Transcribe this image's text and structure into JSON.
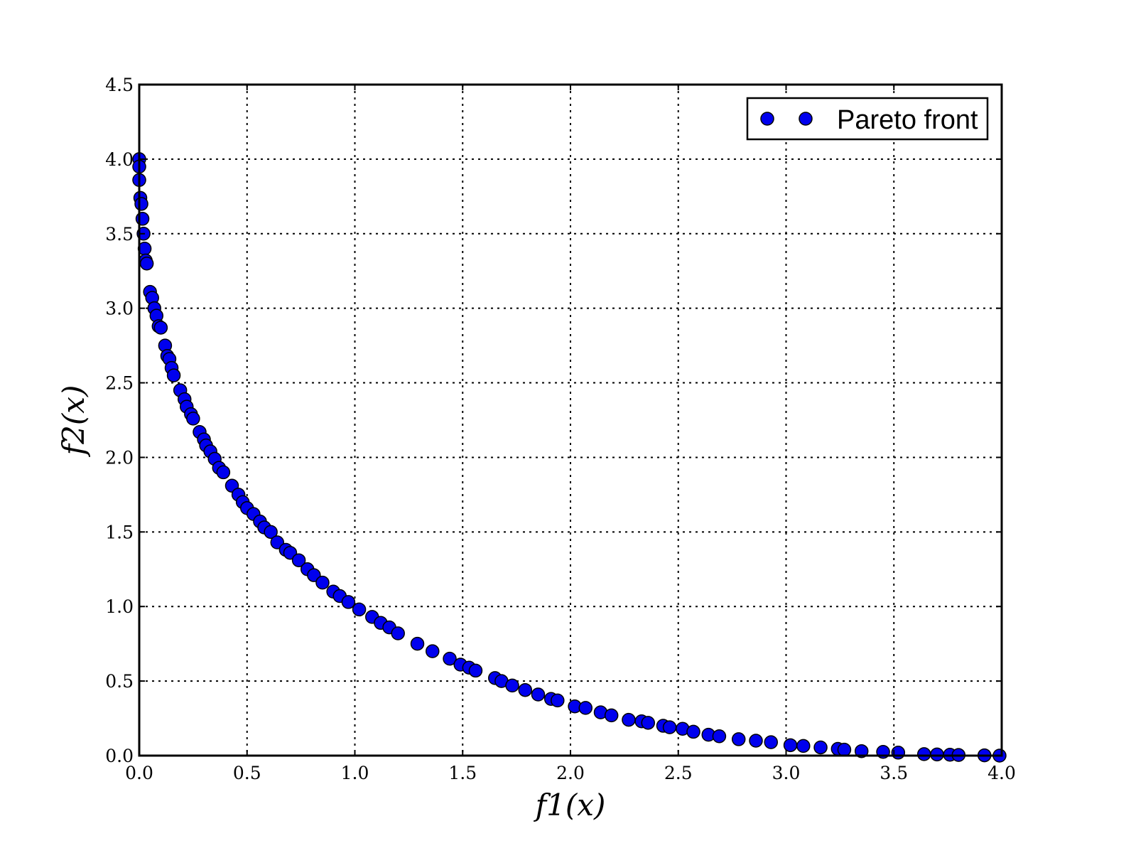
{
  "colors": {
    "marker_fill": "#0000ee",
    "marker_edge": "#000000",
    "background": "#ffffff"
  },
  "chart_data": {
    "type": "scatter",
    "title": "",
    "xlabel": "f1(x)",
    "ylabel": "f2(x)",
    "xlim": [
      0,
      4.0
    ],
    "ylim": [
      0,
      4.5
    ],
    "xticks": [
      "0.0",
      "0.5",
      "1.0",
      "1.5",
      "2.0",
      "2.5",
      "3.0",
      "3.5",
      "4.0"
    ],
    "yticks": [
      "0.0",
      "0.5",
      "1.0",
      "1.5",
      "2.0",
      "2.5",
      "3.0",
      "3.5",
      "4.0",
      "4.5"
    ],
    "grid": true,
    "legend": {
      "position": "top-right",
      "entries": [
        "Pareto front"
      ]
    },
    "series": [
      {
        "name": "Pareto front",
        "points": [
          [
            0.0,
            4.0
          ],
          [
            0.0,
            3.95
          ],
          [
            0.0,
            3.86
          ],
          [
            0.005,
            3.74
          ],
          [
            0.01,
            3.7
          ],
          [
            0.015,
            3.6
          ],
          [
            0.02,
            3.5
          ],
          [
            0.025,
            3.4
          ],
          [
            0.03,
            3.32
          ],
          [
            0.035,
            3.3
          ],
          [
            0.05,
            3.11
          ],
          [
            0.06,
            3.07
          ],
          [
            0.07,
            3.0
          ],
          [
            0.08,
            2.95
          ],
          [
            0.09,
            2.88
          ],
          [
            0.1,
            2.87
          ],
          [
            0.12,
            2.75
          ],
          [
            0.13,
            2.68
          ],
          [
            0.14,
            2.66
          ],
          [
            0.15,
            2.6
          ],
          [
            0.16,
            2.55
          ],
          [
            0.19,
            2.45
          ],
          [
            0.21,
            2.39
          ],
          [
            0.22,
            2.34
          ],
          [
            0.24,
            2.29
          ],
          [
            0.25,
            2.26
          ],
          [
            0.28,
            2.17
          ],
          [
            0.3,
            2.12
          ],
          [
            0.31,
            2.08
          ],
          [
            0.33,
            2.04
          ],
          [
            0.35,
            1.99
          ],
          [
            0.37,
            1.93
          ],
          [
            0.39,
            1.9
          ],
          [
            0.43,
            1.81
          ],
          [
            0.46,
            1.75
          ],
          [
            0.48,
            1.7
          ],
          [
            0.5,
            1.66
          ],
          [
            0.53,
            1.62
          ],
          [
            0.56,
            1.57
          ],
          [
            0.58,
            1.53
          ],
          [
            0.61,
            1.5
          ],
          [
            0.64,
            1.43
          ],
          [
            0.68,
            1.38
          ],
          [
            0.7,
            1.36
          ],
          [
            0.74,
            1.31
          ],
          [
            0.78,
            1.25
          ],
          [
            0.81,
            1.21
          ],
          [
            0.85,
            1.16
          ],
          [
            0.9,
            1.1
          ],
          [
            0.93,
            1.07
          ],
          [
            0.97,
            1.03
          ],
          [
            1.02,
            0.98
          ],
          [
            1.08,
            0.93
          ],
          [
            1.12,
            0.89
          ],
          [
            1.16,
            0.86
          ],
          [
            1.2,
            0.82
          ],
          [
            1.29,
            0.75
          ],
          [
            1.36,
            0.7
          ],
          [
            1.44,
            0.65
          ],
          [
            1.49,
            0.61
          ],
          [
            1.53,
            0.59
          ],
          [
            1.56,
            0.57
          ],
          [
            1.65,
            0.52
          ],
          [
            1.68,
            0.5
          ],
          [
            1.73,
            0.47
          ],
          [
            1.79,
            0.44
          ],
          [
            1.85,
            0.41
          ],
          [
            1.91,
            0.38
          ],
          [
            1.94,
            0.37
          ],
          [
            2.02,
            0.33
          ],
          [
            2.07,
            0.32
          ],
          [
            2.14,
            0.29
          ],
          [
            2.19,
            0.27
          ],
          [
            2.27,
            0.24
          ],
          [
            2.33,
            0.23
          ],
          [
            2.36,
            0.22
          ],
          [
            2.43,
            0.2
          ],
          [
            2.46,
            0.19
          ],
          [
            2.52,
            0.18
          ],
          [
            2.57,
            0.16
          ],
          [
            2.64,
            0.14
          ],
          [
            2.69,
            0.13
          ],
          [
            2.78,
            0.11
          ],
          [
            2.86,
            0.1
          ],
          [
            2.93,
            0.09
          ],
          [
            3.02,
            0.07
          ],
          [
            3.08,
            0.065
          ],
          [
            3.16,
            0.055
          ],
          [
            3.24,
            0.045
          ],
          [
            3.27,
            0.04
          ],
          [
            3.35,
            0.03
          ],
          [
            3.45,
            0.025
          ],
          [
            3.52,
            0.02
          ],
          [
            3.64,
            0.01
          ],
          [
            3.7,
            0.008
          ],
          [
            3.76,
            0.006
          ],
          [
            3.8,
            0.004
          ],
          [
            3.92,
            0.002
          ],
          [
            3.99,
            0.0
          ]
        ]
      }
    ]
  }
}
